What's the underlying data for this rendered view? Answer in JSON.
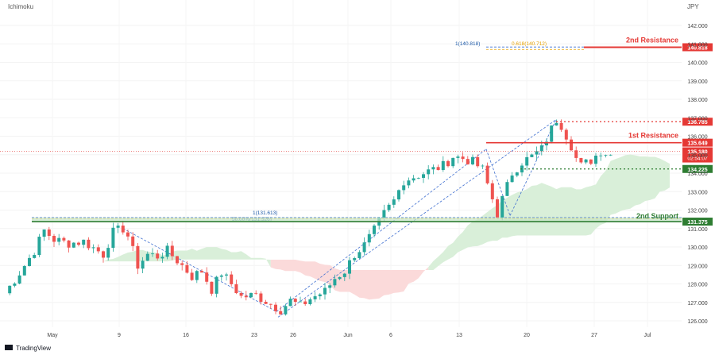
{
  "header": {
    "indicator": "Ichimoku",
    "currency": "JPY"
  },
  "footer": {
    "brand": "TradingView"
  },
  "chart_data": {
    "type": "candlestick",
    "y_axis": {
      "ticks": [
        "142.000",
        "141.000",
        "140.000",
        "139.000",
        "138.000",
        "137.000",
        "136.000",
        "135.000",
        "134.000",
        "133.000",
        "132.000",
        "131.000",
        "130.000",
        "129.000",
        "128.000",
        "127.000",
        "126.000"
      ],
      "range": [
        125.8,
        142.2
      ],
      "position": "right"
    },
    "x_axis": {
      "ticks": [
        "May",
        "9",
        "16",
        "23",
        "26",
        "Jun",
        "6",
        "13",
        "20",
        "27",
        "Jul"
      ]
    },
    "levels": [
      {
        "name": "2nd Resistance",
        "value": 140.818,
        "label": "140.818",
        "color": "#e53935"
      },
      {
        "name": "1st Resistance",
        "value": 135.649,
        "label": "135.649",
        "color": "#e53935"
      },
      {
        "name": "",
        "value": 136.785,
        "label": "136.785",
        "color": "#e53935"
      },
      {
        "name": "2nd Support",
        "value": 131.375,
        "label": "131.375",
        "color": "#2e7d32"
      },
      {
        "name": "",
        "value": 134.225,
        "label": "134.225",
        "color": "#2e7d32"
      }
    ],
    "current_price": {
      "value": 135.18,
      "label": "135.180",
      "countdown": "02:54:07",
      "color": "#e53935"
    },
    "fib_annotations": [
      {
        "text": "1(140.818)",
        "color": "#1e5aa8"
      },
      {
        "text": "0.618(140.712)",
        "color": "#e6a100"
      },
      {
        "text": "1(131.613)",
        "color": "#1e5aa8"
      },
      {
        "text": "50.00%(131.526)",
        "color": "#1e5aa8"
      }
    ],
    "colors": {
      "up": "#26a69a",
      "down": "#ef5350",
      "cloud_bull": "#d9efd9",
      "cloud_bear": "#fbdada"
    },
    "path": [
      [
        0,
        127.5
      ],
      [
        3,
        128.6
      ],
      [
        6,
        129.8
      ],
      [
        8,
        130.9
      ],
      [
        10,
        130.4
      ],
      [
        13,
        130.2
      ],
      [
        16,
        130.3
      ],
      [
        20,
        129.6
      ],
      [
        22,
        130.8
      ],
      [
        24,
        131.0
      ],
      [
        25,
        130.6
      ],
      [
        27,
        129.0
      ],
      [
        29,
        129.6
      ],
      [
        31,
        129.5
      ],
      [
        33,
        129.8
      ],
      [
        36,
        129.0
      ],
      [
        38,
        128.4
      ],
      [
        40,
        128.7
      ],
      [
        42,
        127.7
      ],
      [
        44,
        128.6
      ],
      [
        46,
        128.0
      ],
      [
        48,
        127.3
      ],
      [
        51,
        127.4
      ],
      [
        54,
        126.9
      ],
      [
        56,
        126.6
      ],
      [
        58,
        127.1
      ],
      [
        60,
        126.8
      ],
      [
        62,
        127.2
      ],
      [
        65,
        127.6
      ],
      [
        67,
        128.3
      ],
      [
        69,
        128.7
      ],
      [
        71,
        129.6
      ],
      [
        73,
        130.1
      ],
      [
        75,
        130.9
      ],
      [
        77,
        131.8
      ],
      [
        79,
        132.5
      ],
      [
        81,
        133.6
      ],
      [
        83,
        133.8
      ],
      [
        85,
        134.0
      ],
      [
        87,
        134.2
      ],
      [
        89,
        134.4
      ],
      [
        91,
        134.9
      ],
      [
        93,
        134.8
      ],
      [
        95,
        134.6
      ],
      [
        97,
        134.2
      ],
      [
        99,
        132.6
      ],
      [
        100,
        131.8
      ],
      [
        101,
        132.6
      ],
      [
        103,
        134.0
      ],
      [
        105,
        134.6
      ],
      [
        107,
        134.9
      ],
      [
        109,
        135.3
      ],
      [
        111,
        136.4
      ],
      [
        112,
        136.9
      ],
      [
        113,
        136.6
      ],
      [
        115,
        135.5
      ],
      [
        116,
        134.8
      ],
      [
        117,
        134.4
      ],
      [
        119,
        134.7
      ],
      [
        121,
        135.2
      ],
      [
        123,
        135.0
      ]
    ]
  }
}
